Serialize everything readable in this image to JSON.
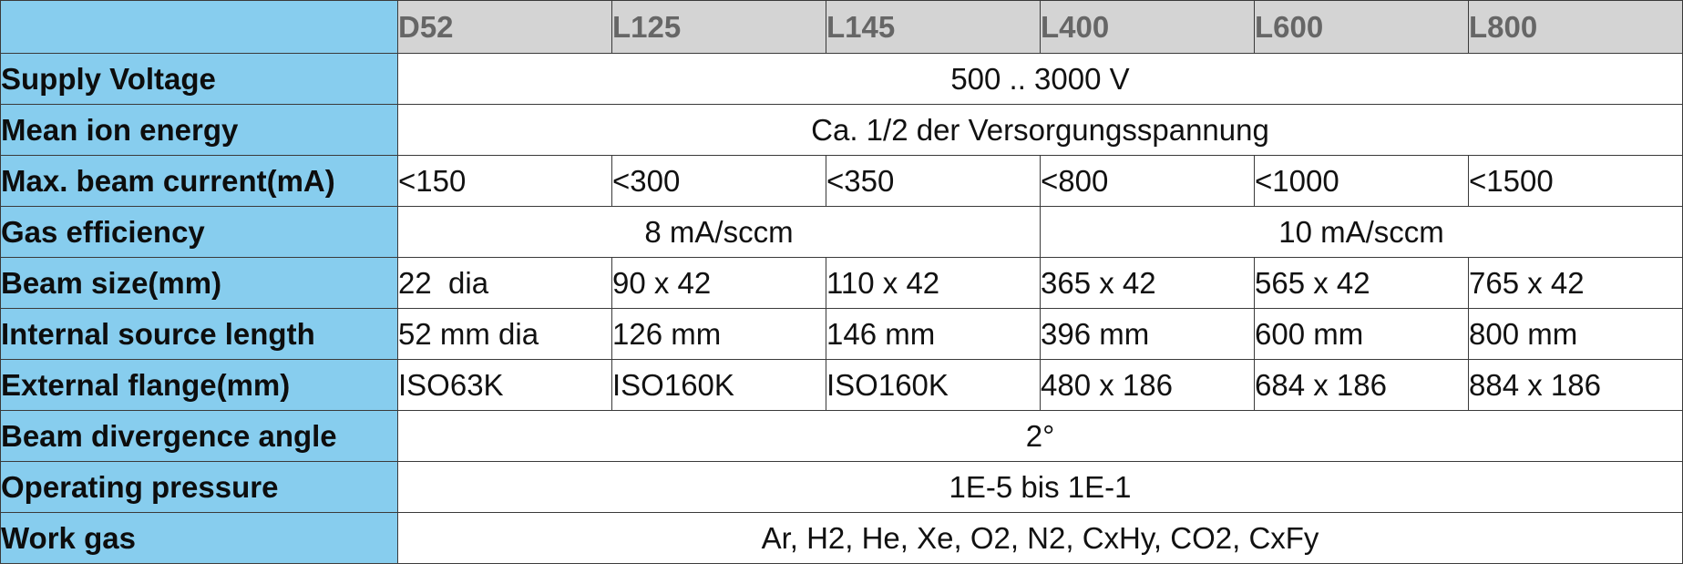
{
  "table": {
    "models": [
      "D52",
      "L125",
      "L145",
      "L400",
      "L600",
      "L800"
    ],
    "rows": {
      "supply_voltage": {
        "label": "Supply Voltage",
        "value": "500 .. 3000 V"
      },
      "mean_ion_energy": {
        "label": "Mean ion energy",
        "value": "Ca. 1/2 der Versorgungsspannung"
      },
      "max_beam_current": {
        "label": "Max. beam current(mA)",
        "values": [
          "<150",
          "<300",
          "<350",
          "<800",
          "<1000",
          "<1500"
        ]
      },
      "gas_efficiency": {
        "label": "Gas efficiency",
        "group_a": "8 mA/sccm",
        "group_b": "10 mA/sccm"
      },
      "beam_size": {
        "label": "Beam size(mm)",
        "values": [
          "22  dia",
          "90 x 42",
          "110 x 42",
          "365 x 42",
          "565 x 42",
          "765 x 42"
        ]
      },
      "internal_source_length": {
        "label": "Internal source length",
        "values": [
          "52 mm dia",
          "126 mm",
          "146 mm",
          "396 mm",
          "600 mm",
          "800 mm"
        ]
      },
      "external_flange": {
        "label": "External flange(mm)",
        "values": [
          "ISO63K",
          "ISO160K",
          "ISO160K",
          "480 x 186",
          "684 x 186",
          "884 x 186"
        ]
      },
      "beam_divergence_angle": {
        "label": "Beam divergence angle",
        "value": "2°"
      },
      "operating_pressure": {
        "label": "Operating pressure",
        "value": "1E-5 bis 1E-1"
      },
      "work_gas": {
        "label": "Work gas",
        "value": "Ar, H2, He, Xe, O2, N2, CxHy, CO2, CxFy"
      }
    }
  },
  "colors": {
    "label_column_bg": "#87cdee",
    "header_bg": "#d4d4d4",
    "header_text": "#666666",
    "border": "#3a3a3a"
  }
}
